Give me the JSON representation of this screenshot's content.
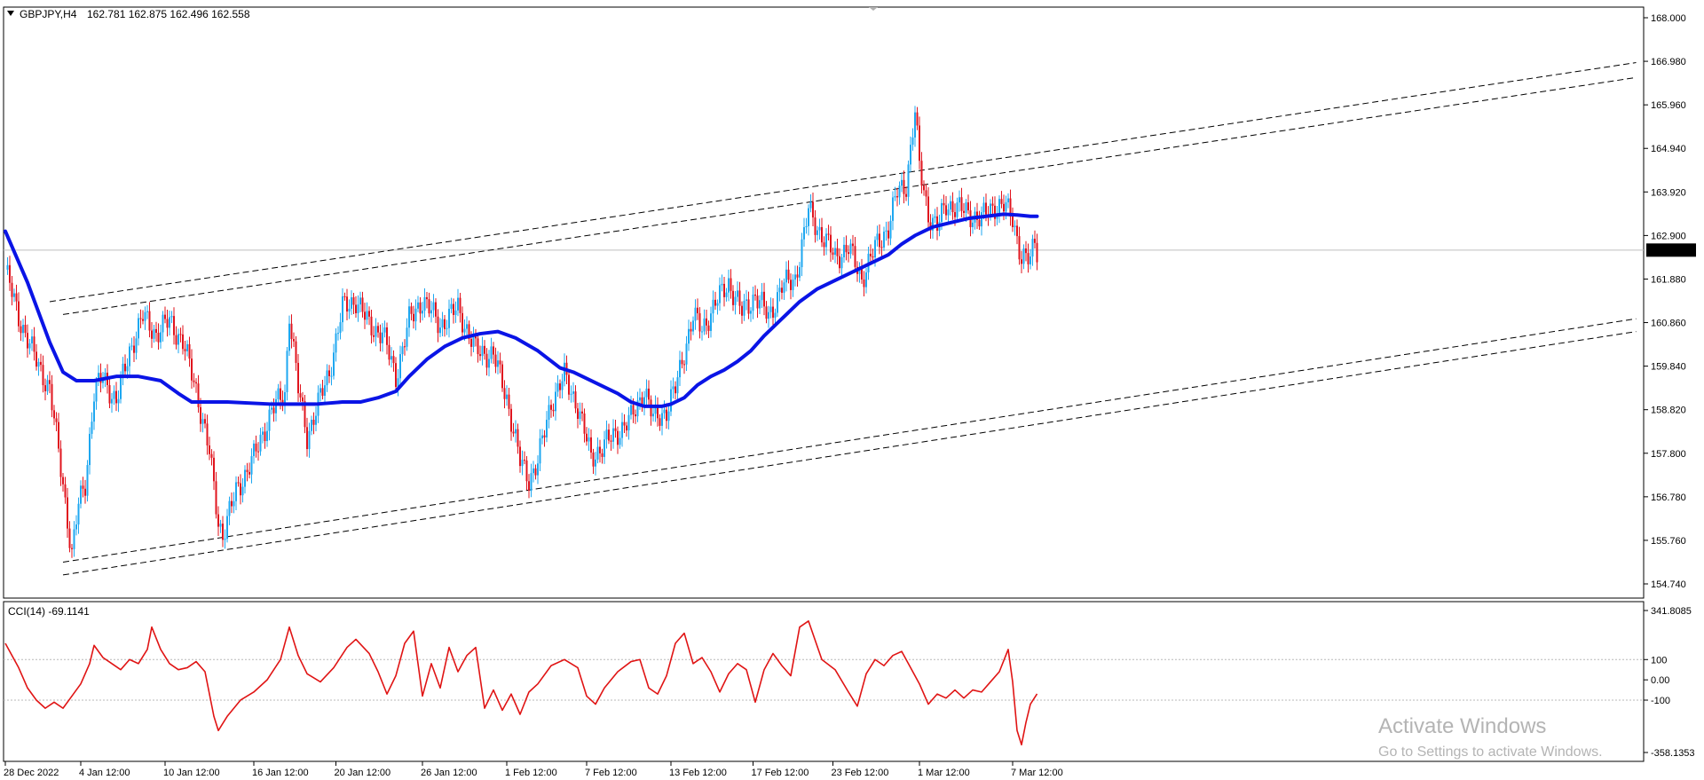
{
  "header": {
    "symbol_label": "GBPJPY,H4",
    "ohlc_text": "162.781 162.875 162.496 162.558"
  },
  "price_axis": {
    "ticks": [
      "168.000",
      "166.980",
      "165.960",
      "164.940",
      "163.920",
      "162.900",
      "161.880",
      "160.860",
      "159.840",
      "158.820",
      "157.800",
      "156.780",
      "155.760",
      "154.740"
    ],
    "current_price": "162.558"
  },
  "indicator": {
    "label": "CCI(14) -69.1141",
    "ticks": [
      "341.8085",
      "100",
      "0.00",
      "-100",
      "-358.1353"
    ]
  },
  "time_axis": {
    "labels": [
      "28 Dec 2022",
      "4 Jan 12:00",
      "10 Jan 12:00",
      "16 Jan 12:00",
      "20 Jan 12:00",
      "26 Jan 12:00",
      "1 Feb 12:00",
      "7 Feb 12:00",
      "13 Feb 12:00",
      "17 Feb 12:00",
      "23 Feb 12:00",
      "1 Mar 12:00",
      "7 Mar 12:00"
    ]
  },
  "watermark": {
    "title": "Activate Windows",
    "subtitle": "Go to Settings to activate Windows."
  },
  "colors": {
    "bull": "#1ea7f0",
    "bear": "#e0141e",
    "ma": "#0a14e6",
    "cci": "#e01414",
    "price_tag_bg": "#000000"
  },
  "chart_data": {
    "type": "candlestick",
    "symbol": "GBPJPY",
    "timeframe": "H4",
    "ylim": [
      154.74,
      168.0
    ],
    "last_price": 162.558,
    "price_path": [
      [
        0,
        162.1
      ],
      [
        6,
        161.0
      ],
      [
        12,
        160.2
      ],
      [
        20,
        159.3
      ],
      [
        26,
        157.1
      ],
      [
        30,
        155.4
      ],
      [
        33,
        156.6
      ],
      [
        36,
        157.1
      ],
      [
        40,
        159.2
      ],
      [
        44,
        159.6
      ],
      [
        50,
        159.0
      ],
      [
        56,
        160.2
      ],
      [
        62,
        161.0
      ],
      [
        68,
        160.6
      ],
      [
        74,
        160.9
      ],
      [
        80,
        160.4
      ],
      [
        86,
        159.3
      ],
      [
        92,
        157.8
      ],
      [
        96,
        156.2
      ],
      [
        98,
        155.9
      ],
      [
        104,
        156.9
      ],
      [
        112,
        157.7
      ],
      [
        120,
        158.8
      ],
      [
        126,
        159.2
      ],
      [
        128,
        161.1
      ],
      [
        132,
        159.3
      ],
      [
        136,
        158.2
      ],
      [
        140,
        158.8
      ],
      [
        146,
        159.7
      ],
      [
        152,
        161.2
      ],
      [
        158,
        161.4
      ],
      [
        164,
        160.8
      ],
      [
        170,
        160.6
      ],
      [
        176,
        159.6
      ],
      [
        182,
        160.9
      ],
      [
        188,
        161.4
      ],
      [
        196,
        160.8
      ],
      [
        204,
        161.2
      ],
      [
        212,
        160.2
      ],
      [
        220,
        160.1
      ],
      [
        226,
        159.1
      ],
      [
        232,
        157.6
      ],
      [
        236,
        157.2
      ],
      [
        240,
        157.6
      ],
      [
        246,
        159.0
      ],
      [
        252,
        159.6
      ],
      [
        258,
        158.9
      ],
      [
        264,
        157.7
      ],
      [
        270,
        158.0
      ],
      [
        276,
        158.3
      ],
      [
        282,
        158.6
      ],
      [
        288,
        159.3
      ],
      [
        292,
        158.6
      ],
      [
        298,
        158.8
      ],
      [
        302,
        159.3
      ],
      [
        306,
        160.2
      ],
      [
        310,
        161.0
      ],
      [
        314,
        160.7
      ],
      [
        320,
        161.3
      ],
      [
        326,
        161.8
      ],
      [
        332,
        161.1
      ],
      [
        338,
        161.5
      ],
      [
        344,
        161.0
      ],
      [
        350,
        161.7
      ],
      [
        356,
        161.9
      ],
      [
        360,
        162.9
      ],
      [
        362,
        163.5
      ],
      [
        368,
        162.9
      ],
      [
        374,
        162.4
      ],
      [
        380,
        162.6
      ],
      [
        386,
        161.9
      ],
      [
        392,
        162.6
      ],
      [
        398,
        163.1
      ],
      [
        402,
        163.9
      ],
      [
        406,
        164.1
      ],
      [
        410,
        165.8
      ],
      [
        412,
        164.5
      ],
      [
        416,
        163.4
      ],
      [
        420,
        163.1
      ],
      [
        424,
        163.6
      ],
      [
        428,
        163.6
      ],
      [
        434,
        163.4
      ],
      [
        440,
        163.3
      ],
      [
        446,
        163.6
      ],
      [
        450,
        163.6
      ],
      [
        454,
        163.3
      ],
      [
        458,
        162.4
      ],
      [
        462,
        162.3
      ],
      [
        464,
        162.8
      ],
      [
        465,
        162.56
      ]
    ],
    "ma_path": [
      [
        0,
        163.0
      ],
      [
        10,
        161.8
      ],
      [
        20,
        160.4
      ],
      [
        26,
        159.7
      ],
      [
        32,
        159.5
      ],
      [
        40,
        159.5
      ],
      [
        50,
        159.6
      ],
      [
        60,
        159.6
      ],
      [
        70,
        159.5
      ],
      [
        78,
        159.2
      ],
      [
        84,
        159.0
      ],
      [
        100,
        159.0
      ],
      [
        120,
        158.95
      ],
      [
        140,
        158.95
      ],
      [
        152,
        159.0
      ],
      [
        160,
        159.0
      ],
      [
        168,
        159.1
      ],
      [
        176,
        159.25
      ],
      [
        182,
        159.6
      ],
      [
        190,
        160.0
      ],
      [
        198,
        160.3
      ],
      [
        206,
        160.5
      ],
      [
        214,
        160.6
      ],
      [
        222,
        160.65
      ],
      [
        230,
        160.5
      ],
      [
        240,
        160.2
      ],
      [
        250,
        159.8
      ],
      [
        256,
        159.7
      ],
      [
        264,
        159.5
      ],
      [
        270,
        159.35
      ],
      [
        276,
        159.2
      ],
      [
        282,
        159.0
      ],
      [
        288,
        158.9
      ],
      [
        296,
        158.9
      ],
      [
        300,
        158.95
      ],
      [
        306,
        159.1
      ],
      [
        312,
        159.4
      ],
      [
        318,
        159.6
      ],
      [
        324,
        159.75
      ],
      [
        330,
        159.95
      ],
      [
        336,
        160.2
      ],
      [
        342,
        160.55
      ],
      [
        350,
        160.95
      ],
      [
        358,
        161.35
      ],
      [
        366,
        161.65
      ],
      [
        374,
        161.85
      ],
      [
        382,
        162.05
      ],
      [
        390,
        162.25
      ],
      [
        398,
        162.45
      ],
      [
        404,
        162.7
      ],
      [
        410,
        162.9
      ],
      [
        418,
        163.1
      ],
      [
        426,
        163.2
      ],
      [
        434,
        163.3
      ],
      [
        442,
        163.35
      ],
      [
        450,
        163.4
      ],
      [
        456,
        163.38
      ],
      [
        462,
        163.35
      ],
      [
        465,
        163.35
      ]
    ],
    "channels": [
      {
        "style": "dashed",
        "start": [
          20,
          161.35
        ],
        "end": [
          735,
          166.95
        ]
      },
      {
        "style": "dashed",
        "start": [
          26,
          161.05
        ],
        "end": [
          735,
          166.6
        ]
      },
      {
        "style": "dashed",
        "start": [
          26,
          155.25
        ],
        "end": [
          735,
          160.95
        ]
      },
      {
        "style": "dashed",
        "start": [
          26,
          154.95
        ],
        "end": [
          735,
          160.65
        ]
      }
    ],
    "indicator": {
      "name": "CCI(14)",
      "last_value": -69.1141,
      "ylim": [
        -358.1353,
        341.8085
      ],
      "levels": [
        100,
        -100
      ],
      "path": [
        [
          0,
          180
        ],
        [
          6,
          60
        ],
        [
          10,
          -40
        ],
        [
          14,
          -100
        ],
        [
          18,
          -140
        ],
        [
          22,
          -110
        ],
        [
          26,
          -140
        ],
        [
          30,
          -80
        ],
        [
          34,
          -20
        ],
        [
          38,
          80
        ],
        [
          40,
          170
        ],
        [
          44,
          110
        ],
        [
          48,
          80
        ],
        [
          52,
          50
        ],
        [
          56,
          100
        ],
        [
          60,
          80
        ],
        [
          64,
          150
        ],
        [
          66,
          260
        ],
        [
          70,
          150
        ],
        [
          74,
          80
        ],
        [
          78,
          50
        ],
        [
          82,
          60
        ],
        [
          86,
          90
        ],
        [
          90,
          40
        ],
        [
          94,
          -180
        ],
        [
          96,
          -250
        ],
        [
          100,
          -180
        ],
        [
          106,
          -100
        ],
        [
          112,
          -60
        ],
        [
          118,
          0
        ],
        [
          124,
          100
        ],
        [
          128,
          260
        ],
        [
          132,
          120
        ],
        [
          136,
          30
        ],
        [
          142,
          -10
        ],
        [
          148,
          60
        ],
        [
          154,
          160
        ],
        [
          158,
          200
        ],
        [
          164,
          130
        ],
        [
          168,
          40
        ],
        [
          172,
          -70
        ],
        [
          176,
          20
        ],
        [
          180,
          180
        ],
        [
          184,
          240
        ],
        [
          188,
          -80
        ],
        [
          192,
          80
        ],
        [
          196,
          -40
        ],
        [
          200,
          160
        ],
        [
          204,
          40
        ],
        [
          208,
          120
        ],
        [
          212,
          160
        ],
        [
          216,
          -140
        ],
        [
          220,
          -50
        ],
        [
          224,
          -150
        ],
        [
          228,
          -70
        ],
        [
          232,
          -170
        ],
        [
          236,
          -60
        ],
        [
          240,
          -20
        ],
        [
          246,
          70
        ],
        [
          252,
          100
        ],
        [
          258,
          60
        ],
        [
          262,
          -80
        ],
        [
          266,
          -120
        ],
        [
          270,
          -40
        ],
        [
          276,
          40
        ],
        [
          282,
          90
        ],
        [
          286,
          100
        ],
        [
          290,
          -40
        ],
        [
          294,
          -70
        ],
        [
          298,
          20
        ],
        [
          302,
          180
        ],
        [
          306,
          230
        ],
        [
          310,
          80
        ],
        [
          314,
          110
        ],
        [
          318,
          40
        ],
        [
          322,
          -60
        ],
        [
          326,
          30
        ],
        [
          330,
          80
        ],
        [
          334,
          50
        ],
        [
          338,
          -110
        ],
        [
          342,
          50
        ],
        [
          346,
          130
        ],
        [
          350,
          70
        ],
        [
          354,
          20
        ],
        [
          358,
          260
        ],
        [
          362,
          290
        ],
        [
          368,
          100
        ],
        [
          374,
          50
        ],
        [
          380,
          -60
        ],
        [
          384,
          -130
        ],
        [
          388,
          30
        ],
        [
          392,
          100
        ],
        [
          396,
          70
        ],
        [
          400,
          120
        ],
        [
          404,
          140
        ],
        [
          408,
          60
        ],
        [
          412,
          -20
        ],
        [
          416,
          -120
        ],
        [
          420,
          -70
        ],
        [
          424,
          -90
        ],
        [
          428,
          -50
        ],
        [
          432,
          -90
        ],
        [
          436,
          -50
        ],
        [
          440,
          -60
        ],
        [
          444,
          -10
        ],
        [
          448,
          40
        ],
        [
          452,
          150
        ],
        [
          454,
          -10
        ],
        [
          456,
          -250
        ],
        [
          458,
          -320
        ],
        [
          460,
          -210
        ],
        [
          462,
          -120
        ],
        [
          465,
          -69
        ]
      ]
    }
  }
}
